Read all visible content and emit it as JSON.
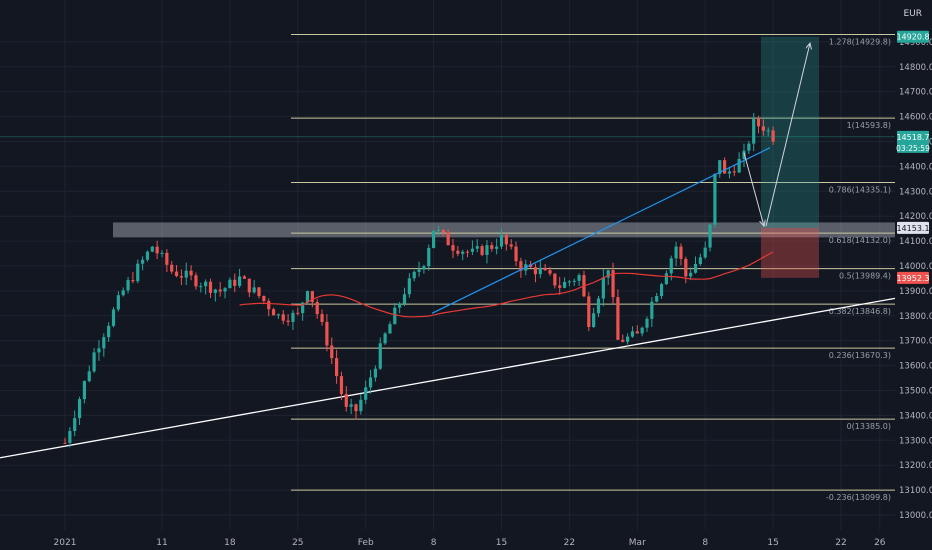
{
  "chart_data": {
    "type": "candlestick",
    "currency": "EUR",
    "y_ticks": [
      13000,
      13100,
      13200,
      13300,
      13400,
      13500,
      13600,
      13700,
      13800,
      13900,
      14000,
      14100,
      14200,
      14300,
      14400,
      14500,
      14600,
      14700,
      14800,
      14900
    ],
    "y_tick_labels": [
      "13000.0",
      "13100.0",
      "13200.0",
      "13300.0",
      "13400.0",
      "13500.0",
      "13600.0",
      "13700.0",
      "13800.0",
      "13900.0",
      "14000.0",
      "14100.0",
      "14200.0",
      "14300.0",
      "14400.0",
      "14500.0",
      "14600.0",
      "14700.0",
      "14800.0",
      "14900.0"
    ],
    "ylim": [
      12950,
      14990
    ],
    "x_labels": [
      {
        "label": "2021",
        "day": 0
      },
      {
        "label": "11",
        "day": 10
      },
      {
        "label": "18",
        "day": 17
      },
      {
        "label": "25",
        "day": 24
      },
      {
        "label": "Feb",
        "day": 31
      },
      {
        "label": "8",
        "day": 38
      },
      {
        "label": "15",
        "day": 45
      },
      {
        "label": "22",
        "day": 52
      },
      {
        "label": "Mar",
        "day": 59
      },
      {
        "label": "8",
        "day": 66
      },
      {
        "label": "15",
        "day": 73
      },
      {
        "label": "22",
        "day": 80
      },
      {
        "label": "26",
        "day": 84
      }
    ],
    "fib_levels": [
      {
        "ratio": "1.278",
        "value": 14929.8,
        "label": "1.278(14929.8)"
      },
      {
        "ratio": "1",
        "value": 14593.8,
        "label": "1(14593.8)"
      },
      {
        "ratio": "0.786",
        "value": 14335.1,
        "label": "0.786(14335.1)"
      },
      {
        "ratio": "0.618",
        "value": 14132.0,
        "label": "0.618(14132.0)"
      },
      {
        "ratio": "0.5",
        "value": 13989.4,
        "label": "0.5(13989.4)"
      },
      {
        "ratio": "0.382",
        "value": 13846.8,
        "label": "0.382(13846.8)"
      },
      {
        "ratio": "0.236",
        "value": 13670.3,
        "label": "0.236(13670.3)"
      },
      {
        "ratio": "0",
        "value": 13385.0,
        "label": "0(13385.0)"
      },
      {
        "ratio": "-0.236",
        "value": 13099.8,
        "label": "-0.236(13099.8)"
      }
    ],
    "price_badges": [
      {
        "label": "14920.8",
        "value": 14920.8,
        "color": "#26a69a"
      },
      {
        "label": "14518.7",
        "value": 14518.7,
        "sub": "03:25:59",
        "color": "#26a69a"
      },
      {
        "label": "14153.1",
        "value": 14153.1,
        "color": "#e0e3eb"
      },
      {
        "label": "13952.3",
        "value": 13952.3,
        "color": "#ef5350"
      }
    ],
    "zone": {
      "value_low": 14115,
      "value_high": 14175
    },
    "trade_box": {
      "entry": 14153.1,
      "target": 14920.8,
      "stop": 13952.3
    },
    "up_color": "#26a69a",
    "down_color": "#ef5350",
    "ma_color": "#e53935",
    "trend_color": "#2196f3",
    "support_color": "#ffffff"
  }
}
